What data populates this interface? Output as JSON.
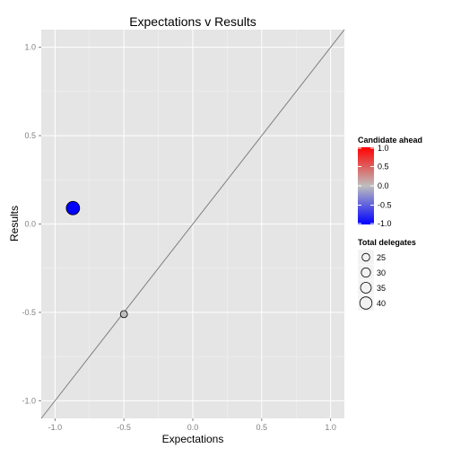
{
  "chart_data": {
    "type": "scatter",
    "title": "Expectations v Results",
    "xlabel": "Expectations",
    "ylabel": "Results",
    "xlim": [
      -1.1,
      1.1
    ],
    "ylim": [
      -1.1,
      1.1
    ],
    "x_ticks": [
      -1.0,
      -0.5,
      0.0,
      0.5,
      1.0
    ],
    "x_tick_labels": [
      "-1.0",
      "-0.5",
      "0.0",
      "0.5",
      "1.0"
    ],
    "y_ticks": [
      -1.0,
      -0.5,
      0.0,
      0.5,
      1.0
    ],
    "y_tick_labels": [
      "-1.0",
      "-0.5",
      "0.0",
      "0.5",
      "1.0"
    ],
    "grid": true,
    "reference_line": {
      "slope": 1,
      "intercept": 0,
      "color": "#7f7f7f"
    },
    "points": [
      {
        "x": -0.87,
        "y": 0.09,
        "candidate_ahead": -1.0,
        "total_delegates": 44
      },
      {
        "x": -0.5,
        "y": -0.51,
        "candidate_ahead": 0.0,
        "total_delegates": 23
      }
    ],
    "color_legend": {
      "title": "Candidate ahead",
      "ticks": [
        1.0,
        0.5,
        0.0,
        -0.5,
        -1.0
      ],
      "tick_labels": [
        "1.0",
        "0.5",
        "0.0",
        "-0.5",
        "-1.0"
      ],
      "range": [
        -1.0,
        1.0
      ],
      "low_color": "#0000ff",
      "mid_color": "#bebebe",
      "high_color": "#ff0000"
    },
    "size_legend": {
      "title": "Total delegates",
      "values": [
        25,
        30,
        35,
        40
      ],
      "labels": [
        "25",
        "30",
        "35",
        "40"
      ]
    },
    "legend_position": "right",
    "panel_background": "#e5e5e5",
    "grid_color": "#ffffff"
  }
}
